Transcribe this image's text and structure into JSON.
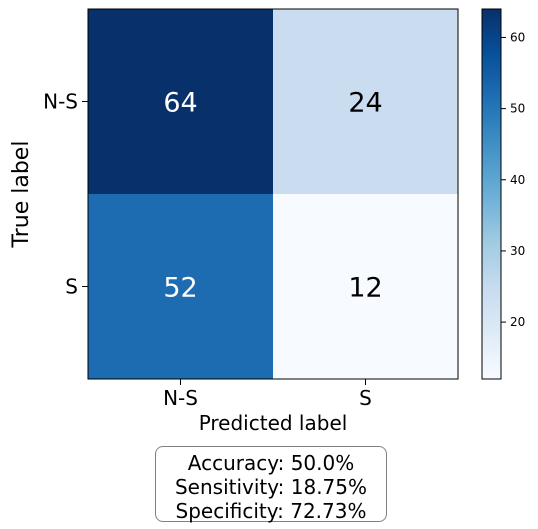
{
  "chart_data": {
    "type": "heatmap",
    "title": "",
    "xlabel": "Predicted label",
    "ylabel": "True label",
    "x_tick_labels": [
      "N-S",
      "S"
    ],
    "y_tick_labels": [
      "N-S",
      "S"
    ],
    "matrix": [
      [
        64,
        24
      ],
      [
        52,
        12
      ]
    ],
    "colormap": "Blues",
    "colorbar": {
      "range": [
        12,
        64
      ],
      "ticks": [
        20,
        30,
        40,
        50,
        60
      ]
    }
  },
  "metrics": {
    "accuracy": "Accuracy: 50.0%",
    "sensitivity": "Sensitivity: 18.75%",
    "specificity": "Specificity: 72.73%"
  },
  "colors": {
    "low": "#f7fbff",
    "high": "#08306b",
    "text_dark": "#000000",
    "text_light": "#ffffff"
  }
}
